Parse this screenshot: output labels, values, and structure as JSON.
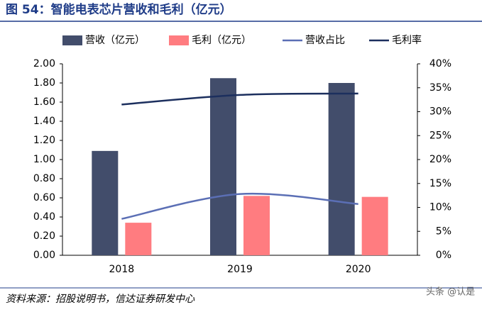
{
  "chart_data": {
    "type": "bar_line",
    "title": "图 54：智能电表芯片营收和毛利（亿元）",
    "source": "资料来源：招股说明书，信达证券研发中心",
    "watermark": "头条 @认是",
    "categories": [
      "2018",
      "2019",
      "2020"
    ],
    "series": [
      {
        "name": "营收（亿元）",
        "color": "#424D6B",
        "kind": "bar",
        "values": [
          1.09,
          1.85,
          1.8
        ]
      },
      {
        "name": "毛利（亿元）",
        "color": "#FF7C80",
        "kind": "bar",
        "values": [
          0.34,
          0.62,
          0.61
        ]
      },
      {
        "name": "营收占比",
        "color": "#5B6FB5",
        "kind": "line",
        "axis": "y2",
        "values": [
          7.6,
          12.8,
          10.7
        ]
      },
      {
        "name": "毛利率",
        "color": "#1C2F5E",
        "kind": "line",
        "axis": "y2",
        "values": [
          31.5,
          33.5,
          33.8
        ]
      }
    ],
    "ylim": [
      0,
      2
    ],
    "yticks": [
      {
        "value": 0,
        "label": "0.00"
      },
      {
        "value": 0.2,
        "label": "0.20"
      },
      {
        "value": 0.4,
        "label": "0.40"
      },
      {
        "value": 0.6,
        "label": "0.60"
      },
      {
        "value": 0.8,
        "label": "0.80"
      },
      {
        "value": 1.0,
        "label": "1.00"
      },
      {
        "value": 1.2,
        "label": "1.20"
      },
      {
        "value": 1.4,
        "label": "1.40"
      },
      {
        "value": 1.6,
        "label": "1.60"
      },
      {
        "value": 1.8,
        "label": "1.80"
      },
      {
        "value": 2.0,
        "label": "2.00"
      }
    ],
    "y2lim": [
      0,
      40
    ],
    "y2ticks": [
      {
        "value": 0,
        "label": "0%"
      },
      {
        "value": 5,
        "label": "5%"
      },
      {
        "value": 10,
        "label": "10%"
      },
      {
        "value": 15,
        "label": "15%"
      },
      {
        "value": 20,
        "label": "20%"
      },
      {
        "value": 25,
        "label": "25%"
      },
      {
        "value": 30,
        "label": "30%"
      },
      {
        "value": 35,
        "label": "35%"
      },
      {
        "value": 40,
        "label": "40%"
      }
    ]
  }
}
